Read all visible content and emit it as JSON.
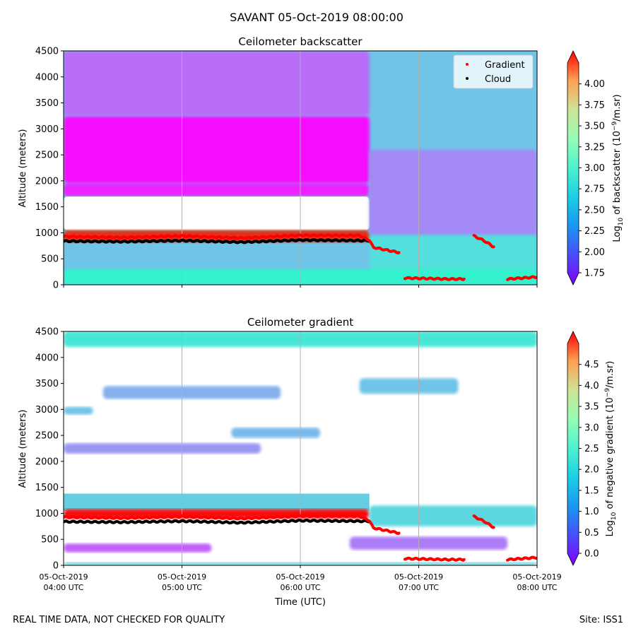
{
  "suptitle": "SAVANT 05-Oct-2019 08:00:00",
  "footer": {
    "left": "REAL TIME DATA, NOT CHECKED FOR QUALITY",
    "right": "Site: ISS1"
  },
  "colors": {
    "cloud": "#000000",
    "gradient": "#ff0000",
    "grid": "#b0b0b0"
  },
  "chart_data": [
    {
      "type": "heatmap",
      "title": "Ceilometer backscatter",
      "ylabel": "Altitude (meters)",
      "ylim": [
        0,
        4500
      ],
      "yticks": [
        0,
        500,
        1000,
        1500,
        2000,
        2500,
        3000,
        3500,
        4000,
        4500
      ],
      "xlim": [
        "04:00",
        "08:00"
      ],
      "grid": "vertical lines at hourly ticks",
      "colorbar": {
        "label_prefix": "Log",
        "label_sub": "10",
        "label_mid": " of backscatter (10",
        "label_sup": "−9",
        "label_suffix": "/m.sr)",
        "range": [
          1.75,
          4.25
        ],
        "ticks": [
          "1.75",
          "2.00",
          "2.25",
          "2.50",
          "2.75",
          "3.00",
          "3.25",
          "3.50",
          "3.75",
          "4.00"
        ],
        "extend": "both",
        "colormap": "rainbow"
      },
      "legend": {
        "placement": "top-right",
        "entries": [
          {
            "label": "Gradient",
            "color": "#ff0000"
          },
          {
            "label": "Cloud",
            "color": "#000000"
          }
        ]
      },
      "regions": [
        {
          "x": [
            "04:00",
            "08:00"
          ],
          "y": [
            0,
            4500
          ],
          "value": 2.45
        },
        {
          "x": [
            "04:00",
            "06:35"
          ],
          "y": [
            1950,
            3250
          ],
          "value": 1.8
        },
        {
          "x": [
            "04:00",
            "06:35"
          ],
          "y": [
            1700,
            1950
          ],
          "value": 1.85
        },
        {
          "x": [
            "04:00",
            "06:35"
          ],
          "y": [
            3250,
            4500
          ],
          "value": 2.1
        },
        {
          "x": [
            "04:00",
            "06:35"
          ],
          "y": [
            1050,
            1700
          ],
          "value": null
        },
        {
          "x": [
            "04:00",
            "06:35"
          ],
          "y": [
            820,
            1050
          ],
          "value": 4.1
        },
        {
          "x": [
            "06:35",
            "08:00"
          ],
          "y": [
            950,
            2600
          ],
          "value": 2.2
        },
        {
          "x": [
            "06:35",
            "08:00"
          ],
          "y": [
            0,
            950
          ],
          "value": 2.6
        },
        {
          "x": [
            "04:00",
            "08:00"
          ],
          "y": [
            0,
            300
          ],
          "value": 2.75
        }
      ],
      "series": [
        {
          "name": "Cloud",
          "color": "#000000",
          "x": [
            "04:00",
            "04:30",
            "05:00",
            "05:30",
            "06:00",
            "06:30",
            "06:35"
          ],
          "y": [
            840,
            830,
            850,
            820,
            860,
            850,
            850
          ]
        },
        {
          "name": "Gradient",
          "color": "#ff0000",
          "x": [
            "04:00",
            "04:30",
            "05:00",
            "05:30",
            "06:00",
            "06:30",
            "06:35",
            "06:37",
            "06:50",
            "06:53",
            "07:15",
            "07:23",
            "07:28",
            "07:33",
            "07:38",
            "07:45",
            "08:00"
          ],
          "y": [
            930,
            910,
            940,
            900,
            950,
            950,
            860,
            720,
            620,
            130,
            110,
            110,
            940,
            850,
            730,
            110,
            150
          ]
        }
      ]
    },
    {
      "type": "heatmap",
      "title": "Ceilometer gradient",
      "xlabel": "Time (UTC)",
      "ylabel": "Altitude (meters)",
      "ylim": [
        0,
        4500
      ],
      "yticks": [
        0,
        500,
        1000,
        1500,
        2000,
        2500,
        3000,
        3500,
        4000,
        4500
      ],
      "xlim": [
        "04:00",
        "08:00"
      ],
      "xticks": [
        {
          "time": "04:00",
          "date": "05-Oct-2019",
          "label": "04:00 UTC"
        },
        {
          "time": "05:00",
          "date": "05-Oct-2019",
          "label": "05:00 UTC"
        },
        {
          "time": "06:00",
          "date": "05-Oct-2019",
          "label": "06:00 UTC"
        },
        {
          "time": "07:00",
          "date": "05-Oct-2019",
          "label": "07:00 UTC"
        },
        {
          "time": "08:00",
          "date": "05-Oct-2019",
          "label": "08:00 UTC"
        }
      ],
      "grid": "vertical lines at hourly ticks",
      "colorbar": {
        "label_prefix": "Log",
        "label_sub": "10",
        "label_mid": " of negative gradient (10",
        "label_sup": "−9",
        "label_suffix": "/m.sr)",
        "range": [
          0,
          5
        ],
        "ticks": [
          "0.0",
          "0.5",
          "1.0",
          "1.5",
          "2.0",
          "2.5",
          "3.0",
          "3.5",
          "4.0",
          "4.5"
        ],
        "extend": "both",
        "colormap": "rainbow"
      },
      "regions": [
        {
          "x": [
            "04:00",
            "06:35"
          ],
          "y": [
            1050,
            1380
          ],
          "value": 1.5
        },
        {
          "x": [
            "04:00",
            "06:35"
          ],
          "y": [
            900,
            1080
          ],
          "value": 4.9
        },
        {
          "x": [
            "06:35",
            "08:00"
          ],
          "y": [
            750,
            1150
          ],
          "value": 1.6
        },
        {
          "x": [
            "04:00",
            "05:15"
          ],
          "y": [
            250,
            420
          ],
          "value": 0.6
        },
        {
          "x": [
            "06:25",
            "07:45"
          ],
          "y": [
            300,
            550
          ],
          "value": 0.8
        },
        {
          "x": [
            "04:00",
            "08:00"
          ],
          "y": [
            0,
            60
          ],
          "value": 1.6
        },
        {
          "x": [
            "04:00",
            "08:00"
          ],
          "y": [
            4200,
            4500
          ],
          "value": 1.8
        },
        {
          "x": [
            "04:20",
            "05:50"
          ],
          "y": [
            3200,
            3450
          ],
          "value": 1.2
        },
        {
          "x": [
            "06:30",
            "07:20"
          ],
          "y": [
            3300,
            3600
          ],
          "value": 1.4
        },
        {
          "x": [
            "04:00",
            "05:40"
          ],
          "y": [
            2150,
            2350
          ],
          "value": 1.0
        },
        {
          "x": [
            "05:25",
            "06:10"
          ],
          "y": [
            2450,
            2650
          ],
          "value": 1.3
        },
        {
          "x": [
            "04:00",
            "04:15"
          ],
          "y": [
            2900,
            3050
          ],
          "value": 1.4
        }
      ],
      "series": [
        {
          "name": "Cloud",
          "color": "#000000",
          "x": [
            "04:00",
            "04:30",
            "05:00",
            "05:30",
            "06:00",
            "06:30",
            "06:35"
          ],
          "y": [
            840,
            830,
            850,
            820,
            860,
            850,
            850
          ]
        },
        {
          "name": "Gradient",
          "color": "#ff0000",
          "x": [
            "04:00",
            "04:30",
            "05:00",
            "05:30",
            "06:00",
            "06:30",
            "06:35",
            "06:37",
            "06:50",
            "06:53",
            "07:15",
            "07:23",
            "07:28",
            "07:33",
            "07:38",
            "07:45",
            "08:00"
          ],
          "y": [
            930,
            910,
            940,
            900,
            950,
            950,
            860,
            720,
            620,
            130,
            110,
            110,
            940,
            850,
            730,
            110,
            150
          ]
        }
      ]
    }
  ]
}
